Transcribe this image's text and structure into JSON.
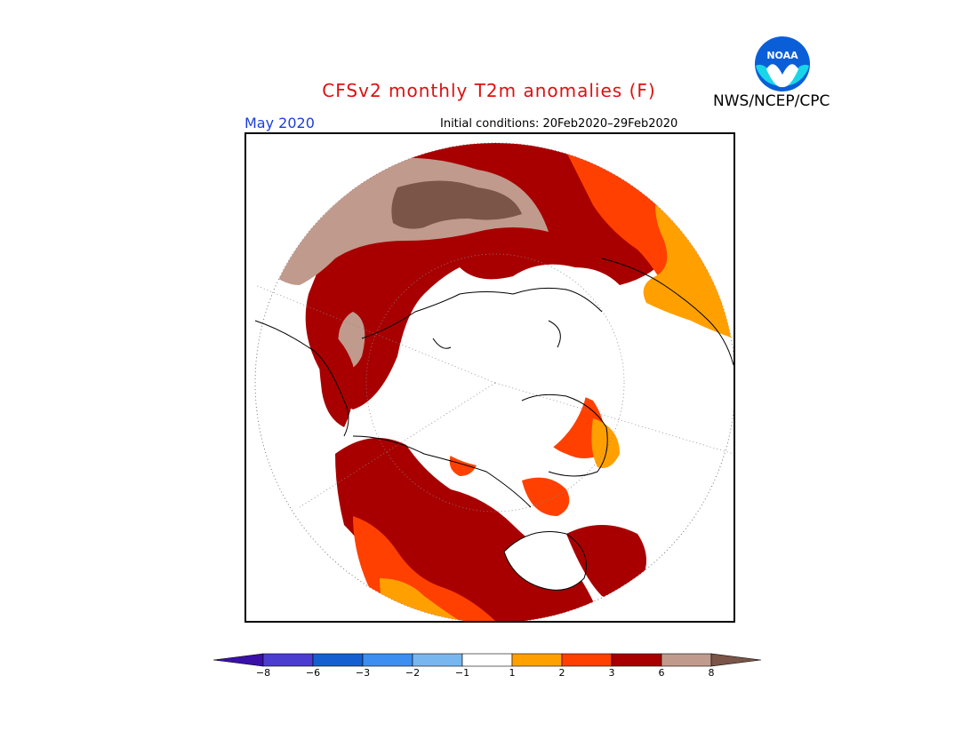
{
  "header": {
    "title": "CFSv2 monthly T2m anomalies (F)",
    "valid_month": "May 2020",
    "initial_conditions": "Initial conditions: 20Feb2020–29Feb2020",
    "agency": "NWS/NCEP/CPC",
    "logo_text": "NOAA"
  },
  "colorbar": {
    "labels": [
      "−8",
      "−6",
      "−3",
      "−2",
      "−1",
      "1",
      "2",
      "3",
      "6",
      "8"
    ],
    "colors": [
      "#3a10a8",
      "#4a3dd0",
      "#1560d0",
      "#3c8ef0",
      "#78b6f0",
      "#ffffff",
      "#ffa000",
      "#ff4000",
      "#a80000",
      "#c09a8c",
      "#7a5548"
    ]
  },
  "legend_colors": {
    "gt8": "#7a5548",
    "6to8": "#c09a8c",
    "3to6": "#a80000",
    "2to3": "#ff4000",
    "1to2": "#ffa000",
    "neutral": "#ffffff"
  }
}
